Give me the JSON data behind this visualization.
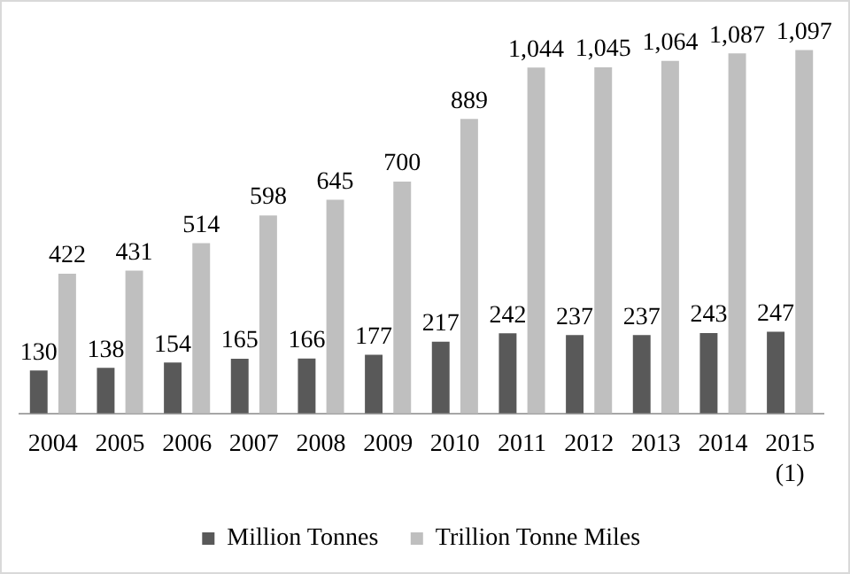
{
  "chart_data": {
    "type": "bar",
    "categories": [
      "2004",
      "2005",
      "2006",
      "2007",
      "2008",
      "2009",
      "2010",
      "2011",
      "2012",
      "2013",
      "2014",
      "2015 (1)"
    ],
    "series": [
      {
        "name": "Million Tonnes",
        "color": "#595959",
        "values": [
          130,
          138,
          154,
          165,
          166,
          177,
          217,
          242,
          237,
          237,
          243,
          247
        ],
        "value_labels": [
          "130",
          "138",
          "154",
          "165",
          "166",
          "177",
          "217",
          "242",
          "237",
          "237",
          "243",
          "247"
        ]
      },
      {
        "name": "Trillion Tonne Miles",
        "color": "#bfbfbf",
        "values": [
          422,
          431,
          514,
          598,
          645,
          700,
          889,
          1044,
          1045,
          1064,
          1087,
          1097
        ],
        "value_labels": [
          "422",
          "431",
          "514",
          "598",
          "645",
          "700",
          "889",
          "1,044",
          "1,045",
          "1,064",
          "1,087",
          "1,097"
        ]
      }
    ],
    "legend": "bottom",
    "grid": false
  }
}
